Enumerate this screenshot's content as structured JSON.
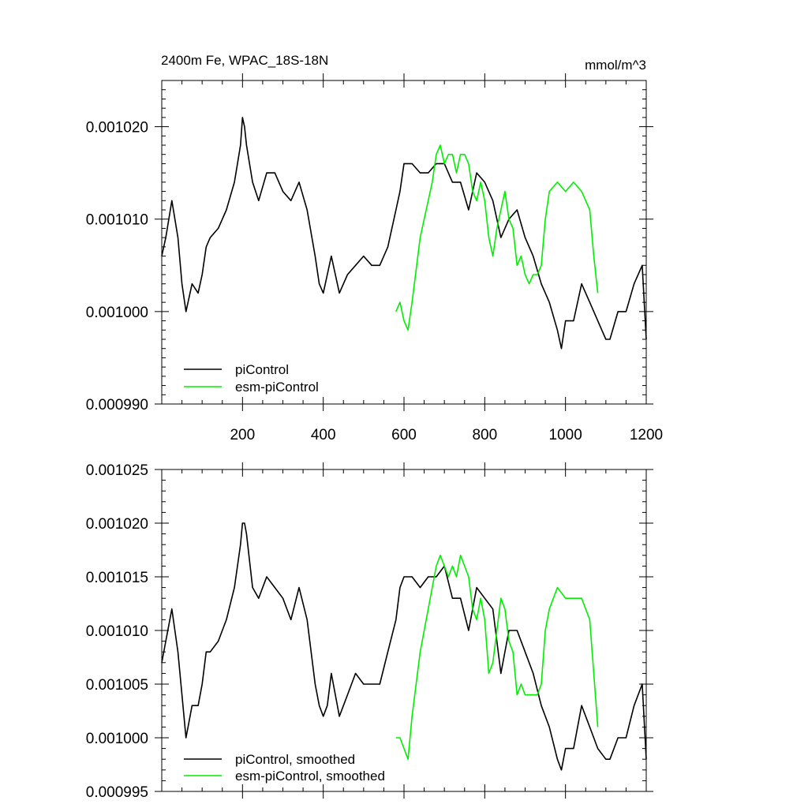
{
  "chart_data": [
    {
      "type": "line",
      "title": "2400m Fe, WPAC_18S-18N",
      "units": "mmol/m^3",
      "xlim": [
        0,
        1200
      ],
      "ylim": [
        0.00099,
        0.001025
      ],
      "xticks": [
        "200",
        "400",
        "600",
        "800",
        "1000",
        "1200"
      ],
      "xtick_values": [
        200,
        400,
        600,
        800,
        1000,
        1200
      ],
      "yticks": [
        "0.000990",
        "0.001000",
        "0.001010",
        "0.001020"
      ],
      "ytick_values": [
        0.00099,
        0.001,
        0.00101,
        0.00102
      ],
      "grid": false,
      "legend_position": "bottom-left",
      "series": [
        {
          "name": "piControl",
          "color": "#000000",
          "x": [
            0,
            10,
            25,
            40,
            50,
            60,
            65,
            75,
            90,
            100,
            110,
            120,
            140,
            160,
            180,
            195,
            200,
            205,
            210,
            225,
            240,
            260,
            280,
            300,
            320,
            340,
            360,
            380,
            390,
            400,
            410,
            420,
            430,
            440,
            460,
            480,
            500,
            520,
            540,
            560,
            580,
            590,
            600,
            620,
            640,
            660,
            680,
            700,
            720,
            740,
            760,
            780,
            800,
            820,
            840,
            860,
            880,
            900,
            920,
            940,
            960,
            980,
            990,
            1000,
            1020,
            1040,
            1060,
            1080,
            1100,
            1110,
            1130,
            1150,
            1170,
            1190,
            1200
          ],
          "y": [
            0.001006,
            0.001008,
            0.001012,
            0.001008,
            0.001003,
            0.001,
            0.001001,
            0.001003,
            0.001002,
            0.001004,
            0.001007,
            0.001008,
            0.001009,
            0.001011,
            0.001014,
            0.001018,
            0.001021,
            0.00102,
            0.001018,
            0.001014,
            0.001012,
            0.001015,
            0.001015,
            0.001013,
            0.001012,
            0.001014,
            0.001011,
            0.001006,
            0.001003,
            0.001002,
            0.001004,
            0.001006,
            0.001004,
            0.001002,
            0.001004,
            0.001005,
            0.001006,
            0.001005,
            0.001005,
            0.001007,
            0.001011,
            0.001013,
            0.001016,
            0.001016,
            0.001015,
            0.001015,
            0.001016,
            0.001016,
            0.001014,
            0.001014,
            0.001011,
            0.001015,
            0.001014,
            0.001012,
            0.001008,
            0.00101,
            0.001011,
            0.001008,
            0.001006,
            0.001003,
            0.001001,
            0.000998,
            0.000996,
            0.000999,
            0.000999,
            0.001003,
            0.001001,
            0.000999,
            0.000997,
            0.000997,
            0.001,
            0.001,
            0.001003,
            0.001005,
            0.000997
          ]
        },
        {
          "name": "esm-piControl",
          "color": "#00ee00",
          "x": [
            580,
            590,
            600,
            610,
            620,
            640,
            660,
            670,
            680,
            690,
            700,
            710,
            720,
            730,
            740,
            750,
            760,
            770,
            780,
            790,
            800,
            810,
            820,
            830,
            840,
            850,
            860,
            870,
            880,
            890,
            900,
            910,
            920,
            930,
            940,
            950,
            960,
            980,
            1000,
            1020,
            1040,
            1060,
            1070,
            1080
          ],
          "y": [
            0.001,
            0.001001,
            0.000999,
            0.000998,
            0.001001,
            0.001008,
            0.001012,
            0.001014,
            0.001017,
            0.001018,
            0.001016,
            0.001017,
            0.001017,
            0.001015,
            0.001017,
            0.001017,
            0.001016,
            0.001013,
            0.001012,
            0.001014,
            0.001012,
            0.001008,
            0.001006,
            0.001009,
            0.001011,
            0.001013,
            0.00101,
            0.001009,
            0.001005,
            0.001006,
            0.001004,
            0.001003,
            0.001004,
            0.001004,
            0.001005,
            0.00101,
            0.001013,
            0.001014,
            0.001013,
            0.001014,
            0.001013,
            0.001011,
            0.001006,
            0.001002
          ]
        }
      ]
    },
    {
      "type": "line",
      "xlim": [
        0,
        1200
      ],
      "ylim": [
        0.000995,
        0.001025
      ],
      "xticks": [],
      "yticks": [
        "0.000995",
        "0.001000",
        "0.001005",
        "0.001010",
        "0.001015",
        "0.001020",
        "0.001025"
      ],
      "ytick_values": [
        0.000995,
        0.001,
        0.001005,
        0.00101,
        0.001015,
        0.00102,
        0.001025
      ],
      "grid": false,
      "legend_position": "bottom-left",
      "series": [
        {
          "name": "piControl, smoothed",
          "color": "#000000",
          "x": [
            0,
            10,
            25,
            40,
            50,
            60,
            65,
            75,
            90,
            100,
            110,
            120,
            140,
            160,
            180,
            195,
            200,
            205,
            210,
            225,
            240,
            260,
            280,
            300,
            320,
            340,
            360,
            380,
            390,
            400,
            410,
            420,
            430,
            440,
            460,
            480,
            500,
            520,
            540,
            560,
            580,
            590,
            600,
            620,
            640,
            660,
            680,
            700,
            720,
            740,
            760,
            780,
            800,
            820,
            840,
            860,
            880,
            900,
            920,
            940,
            960,
            980,
            990,
            1000,
            1020,
            1040,
            1060,
            1080,
            1100,
            1110,
            1130,
            1150,
            1170,
            1190,
            1200
          ],
          "y": [
            0.001007,
            0.001009,
            0.001012,
            0.001008,
            0.001004,
            0.001,
            0.001001,
            0.001003,
            0.001003,
            0.001005,
            0.001008,
            0.001008,
            0.001009,
            0.001011,
            0.001014,
            0.001018,
            0.00102,
            0.00102,
            0.001019,
            0.001014,
            0.001013,
            0.001015,
            0.001014,
            0.001013,
            0.001011,
            0.001014,
            0.001011,
            0.001005,
            0.001003,
            0.001002,
            0.001003,
            0.001006,
            0.001004,
            0.001002,
            0.001004,
            0.001006,
            0.001005,
            0.001005,
            0.001005,
            0.001008,
            0.001011,
            0.001014,
            0.001015,
            0.001015,
            0.001014,
            0.001015,
            0.001015,
            0.001016,
            0.001013,
            0.001013,
            0.00101,
            0.001014,
            0.001013,
            0.001012,
            0.001006,
            0.00101,
            0.00101,
            0.001008,
            0.001006,
            0.001003,
            0.001001,
            0.000998,
            0.000997,
            0.000999,
            0.000999,
            0.001003,
            0.001001,
            0.000999,
            0.000998,
            0.000998,
            0.001,
            0.001,
            0.001003,
            0.001005,
            0.000998
          ]
        },
        {
          "name": "esm-piControl, smoothed",
          "color": "#00ee00",
          "x": [
            580,
            590,
            600,
            610,
            620,
            640,
            660,
            670,
            680,
            690,
            700,
            710,
            720,
            730,
            740,
            750,
            760,
            770,
            780,
            790,
            800,
            810,
            820,
            830,
            840,
            850,
            860,
            870,
            880,
            890,
            900,
            910,
            920,
            930,
            940,
            950,
            960,
            980,
            1000,
            1020,
            1040,
            1060,
            1070,
            1080
          ],
          "y": [
            0.001,
            0.001,
            0.000999,
            0.000998,
            0.001002,
            0.001008,
            0.001012,
            0.001014,
            0.001016,
            0.001017,
            0.001016,
            0.001015,
            0.001016,
            0.001015,
            0.001017,
            0.001016,
            0.001015,
            0.001012,
            0.001011,
            0.001013,
            0.001011,
            0.001006,
            0.001007,
            0.00101,
            0.001013,
            0.001012,
            0.001009,
            0.001008,
            0.001004,
            0.001005,
            0.001004,
            0.001004,
            0.001004,
            0.001004,
            0.001005,
            0.00101,
            0.001012,
            0.001014,
            0.001013,
            0.001013,
            0.001013,
            0.001011,
            0.001006,
            0.001001
          ]
        }
      ]
    }
  ]
}
